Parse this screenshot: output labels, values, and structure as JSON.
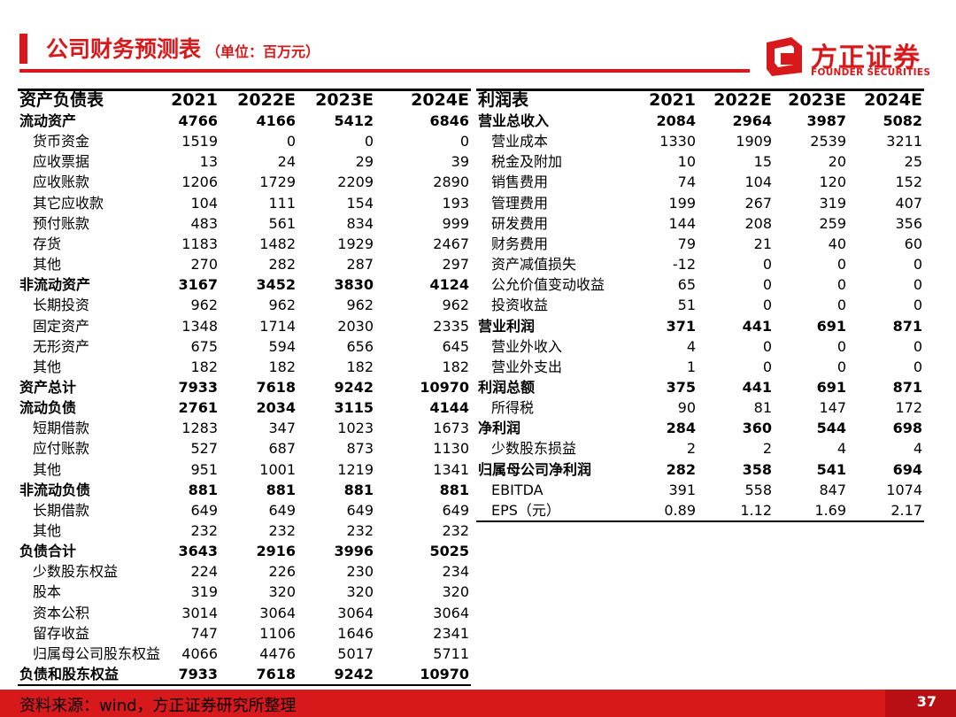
{
  "header": {
    "title": "公司财务预测表",
    "unit": "（单位：百万元）",
    "logo_cn": "方正证券",
    "logo_en": "FOUNDER SECURITIES",
    "logo_icon": "founder-logo-icon"
  },
  "balance_sheet": {
    "headers": [
      "资产负债表",
      "2021",
      "2022E",
      "2023E",
      "2024E"
    ],
    "rows": [
      {
        "label": "流动资产",
        "v": [
          "4766",
          "4166",
          "5412",
          "6846"
        ],
        "bold": true
      },
      {
        "label": "货币资金",
        "v": [
          "1519",
          "0",
          "0",
          "0"
        ]
      },
      {
        "label": "应收票据",
        "v": [
          "13",
          "24",
          "29",
          "39"
        ]
      },
      {
        "label": "应收账款",
        "v": [
          "1206",
          "1729",
          "2209",
          "2890"
        ]
      },
      {
        "label": "其它应收款",
        "v": [
          "104",
          "111",
          "154",
          "193"
        ]
      },
      {
        "label": "预付账款",
        "v": [
          "483",
          "561",
          "834",
          "999"
        ]
      },
      {
        "label": "存货",
        "v": [
          "1183",
          "1482",
          "1929",
          "2467"
        ]
      },
      {
        "label": "其他",
        "v": [
          "270",
          "282",
          "287",
          "297"
        ]
      },
      {
        "label": "非流动资产",
        "v": [
          "3167",
          "3452",
          "3830",
          "4124"
        ],
        "bold": true
      },
      {
        "label": "长期投资",
        "v": [
          "962",
          "962",
          "962",
          "962"
        ]
      },
      {
        "label": "固定资产",
        "v": [
          "1348",
          "1714",
          "2030",
          "2335"
        ]
      },
      {
        "label": "无形资产",
        "v": [
          "675",
          "594",
          "656",
          "645"
        ]
      },
      {
        "label": "其他",
        "v": [
          "182",
          "182",
          "182",
          "182"
        ]
      },
      {
        "label": "资产总计",
        "v": [
          "7933",
          "7618",
          "9242",
          "10970"
        ],
        "bold": true
      },
      {
        "label": "流动负债",
        "v": [
          "2761",
          "2034",
          "3115",
          "4144"
        ],
        "bold": true
      },
      {
        "label": "短期借款",
        "v": [
          "1283",
          "347",
          "1023",
          "1673"
        ]
      },
      {
        "label": "应付账款",
        "v": [
          "527",
          "687",
          "873",
          "1130"
        ]
      },
      {
        "label": "其他",
        "v": [
          "951",
          "1001",
          "1219",
          "1341"
        ]
      },
      {
        "label": "非流动负债",
        "v": [
          "881",
          "881",
          "881",
          "881"
        ],
        "bold": true
      },
      {
        "label": "长期借款",
        "v": [
          "649",
          "649",
          "649",
          "649"
        ]
      },
      {
        "label": "其他",
        "v": [
          "232",
          "232",
          "232",
          "232"
        ]
      },
      {
        "label": "负债合计",
        "v": [
          "3643",
          "2916",
          "3996",
          "5025"
        ],
        "bold": true
      },
      {
        "label": "少数股东权益",
        "v": [
          "224",
          "226",
          "230",
          "234"
        ]
      },
      {
        "label": "股本",
        "v": [
          "319",
          "320",
          "320",
          "320"
        ]
      },
      {
        "label": "资本公积",
        "v": [
          "3014",
          "3064",
          "3064",
          "3064"
        ]
      },
      {
        "label": "留存收益",
        "v": [
          "747",
          "1106",
          "1646",
          "2341"
        ]
      },
      {
        "label": "归属母公司股东权益",
        "v": [
          "4066",
          "4476",
          "5017",
          "5711"
        ]
      },
      {
        "label": "负债和股东权益",
        "v": [
          "7933",
          "7618",
          "9242",
          "10970"
        ],
        "bold": true
      }
    ]
  },
  "income_statement": {
    "headers": [
      "利润表",
      "2021",
      "2022E",
      "2023E",
      "2024E"
    ],
    "rows": [
      {
        "label": "营业总收入",
        "v": [
          "2084",
          "2964",
          "3987",
          "5082"
        ],
        "bold": true
      },
      {
        "label": "营业成本",
        "v": [
          "1330",
          "1909",
          "2539",
          "3211"
        ]
      },
      {
        "label": "税金及附加",
        "v": [
          "10",
          "15",
          "20",
          "25"
        ]
      },
      {
        "label": "销售费用",
        "v": [
          "74",
          "104",
          "120",
          "152"
        ]
      },
      {
        "label": "管理费用",
        "v": [
          "199",
          "267",
          "319",
          "407"
        ]
      },
      {
        "label": "研发费用",
        "v": [
          "144",
          "208",
          "259",
          "356"
        ]
      },
      {
        "label": "财务费用",
        "v": [
          "79",
          "21",
          "40",
          "60"
        ]
      },
      {
        "label": "资产减值损失",
        "v": [
          "-12",
          "0",
          "0",
          "0"
        ]
      },
      {
        "label": "公允价值变动收益",
        "v": [
          "65",
          "0",
          "0",
          "0"
        ]
      },
      {
        "label": "投资收益",
        "v": [
          "51",
          "0",
          "0",
          "0"
        ]
      },
      {
        "label": "营业利润",
        "v": [
          "371",
          "441",
          "691",
          "871"
        ],
        "bold": true
      },
      {
        "label": "营业外收入",
        "v": [
          "4",
          "0",
          "0",
          "0"
        ]
      },
      {
        "label": "营业外支出",
        "v": [
          "1",
          "0",
          "0",
          "0"
        ]
      },
      {
        "label": "利润总额",
        "v": [
          "375",
          "441",
          "691",
          "871"
        ],
        "bold": true
      },
      {
        "label": "所得税",
        "v": [
          "90",
          "81",
          "147",
          "172"
        ]
      },
      {
        "label": "净利润",
        "v": [
          "284",
          "360",
          "544",
          "698"
        ],
        "bold": true
      },
      {
        "label": "少数股东损益",
        "v": [
          "2",
          "2",
          "4",
          "4"
        ]
      },
      {
        "label": "归属母公司净利润",
        "v": [
          "282",
          "358",
          "541",
          "694"
        ],
        "bold": true
      },
      {
        "label": "EBITDA",
        "v": [
          "391",
          "558",
          "847",
          "1074"
        ]
      },
      {
        "label": "EPS（元）",
        "v": [
          "0.89",
          "1.12",
          "1.69",
          "2.17"
        ]
      }
    ]
  },
  "footer": {
    "source": "资料来源：wind，方正证券研究所整理",
    "page": "37"
  }
}
